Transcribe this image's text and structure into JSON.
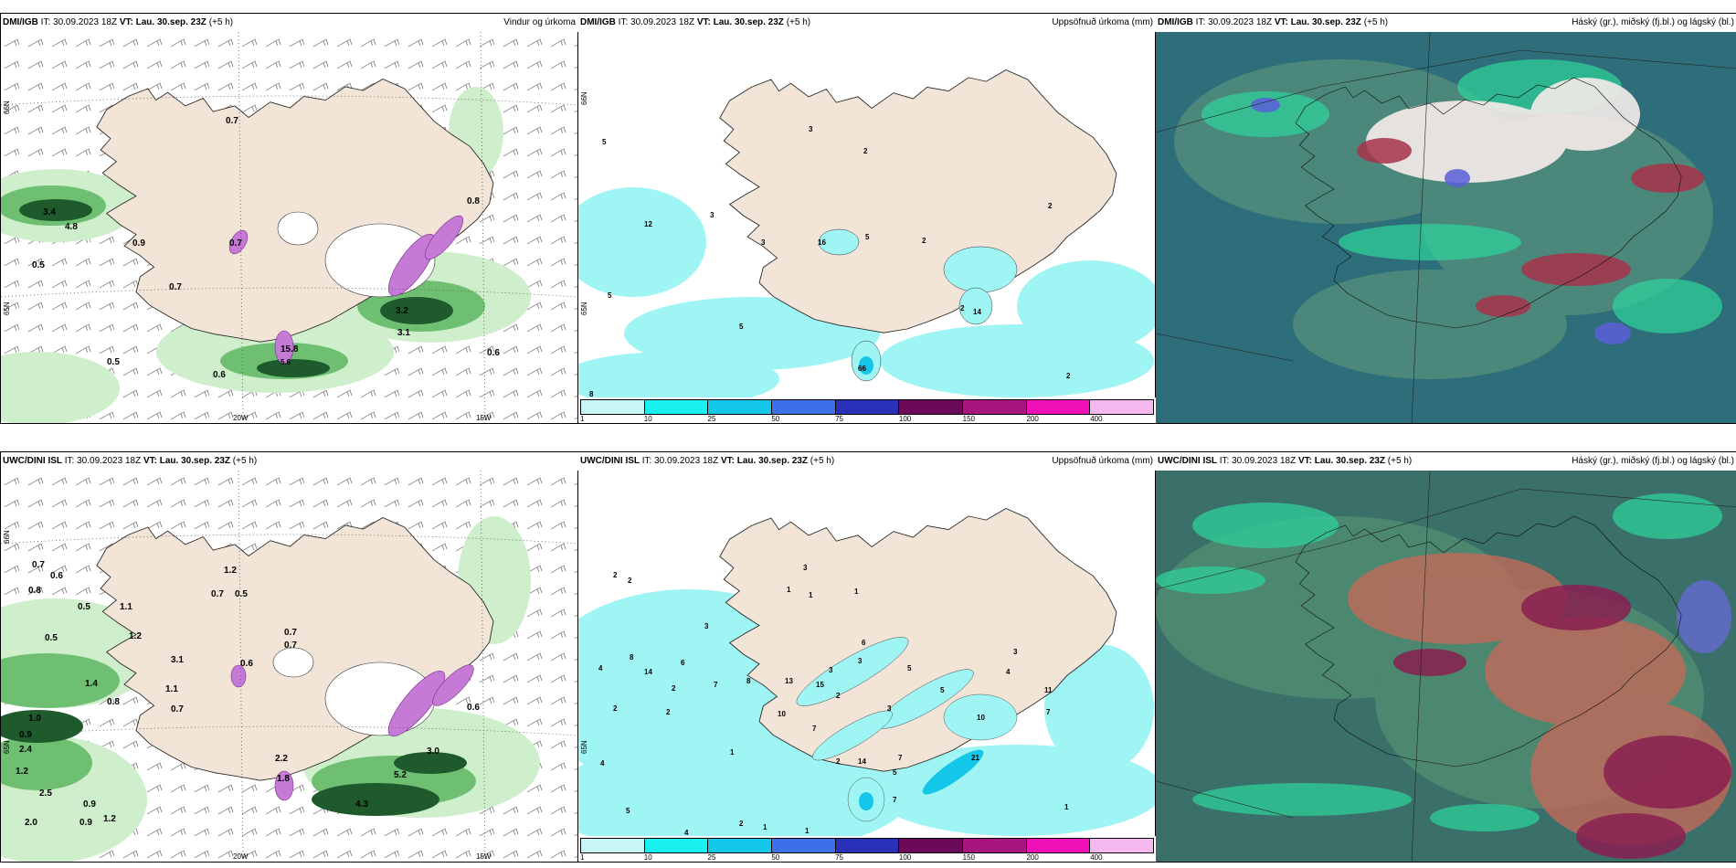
{
  "colors": {
    "land": "#f2e4d6",
    "sea": "#ffffff",
    "wind_light": "#cfeecb",
    "wind_mid": "#6fbf72",
    "wind_dark": "#1e5a2c",
    "precip_cyan": "#9ff4f4",
    "cloud_base": "#2e6e7a",
    "cloud_green": "#2fcf9a",
    "cloud_red": "#a8324a",
    "cloud_white": "#f6ecea"
  },
  "colorbar": {
    "ticks": [
      "1",
      "10",
      "25",
      "50",
      "75",
      "100",
      "150",
      "200",
      "400"
    ],
    "colors": [
      "#c9f7f7",
      "#19f0f0",
      "#14c6e8",
      "#3d6fe8",
      "#2a2fb8",
      "#6b0a56",
      "#a8157e",
      "#f010b8",
      "#f5b8ef"
    ]
  },
  "panels": [
    {
      "model": "DMI/IGB",
      "it": "IT: 30.09.2023 18Z",
      "vt_label": "VT:",
      "vt": "Lau. 30.sep. 23Z",
      "lead": "(+5 h)",
      "product": "Vindur og úrkoma",
      "axis": {
        "lat_top": "66N",
        "lat_mid": "65N",
        "lon_left": "20W",
        "lon_right": "15W"
      },
      "labels": [
        "0.7",
        "3.4",
        "4.8",
        "0.9",
        "0.5",
        "0.7",
        "0.7",
        "0.8",
        "3.2",
        "3.1",
        "0.6",
        "0.5",
        "0.6",
        "15.8",
        "5.6"
      ]
    },
    {
      "model": "DMI/IGB",
      "it": "IT: 30.09.2023 18Z",
      "vt_label": "VT:",
      "vt": "Lau. 30.sep. 23Z",
      "lead": "(+5 h)",
      "product": "Uppsöfnuð úrkoma (mm)",
      "axis": {
        "lat_top": "66N",
        "lat_mid": "65N"
      },
      "labels": [
        "5",
        "3",
        "2",
        "3",
        "3",
        "16",
        "5",
        "2",
        "2",
        "5",
        "5",
        "2",
        "8",
        "14",
        "66",
        "2",
        "12"
      ]
    },
    {
      "model": "DMI/IGB",
      "it": "IT: 30.09.2023 18Z",
      "vt_label": "VT:",
      "vt": "Lau. 30.sep. 23Z",
      "lead": "(+5 h)",
      "product": "Háský (gr.), miðský (fj.bl.) og lágský (bl.)"
    },
    {
      "model": "UWC/DINI ISL",
      "it": "IT: 30.09.2023 18Z",
      "vt_label": "VT:",
      "vt": "Lau. 30.sep. 23Z",
      "lead": "(+5 h)",
      "product": "",
      "axis": {
        "lat_top": "66N",
        "lat_mid": "65N",
        "lon_left": "20W",
        "lon_right": "15W"
      },
      "labels": [
        "0.7",
        "0.6",
        "0.8",
        "1.2",
        "0.5",
        "0.7",
        "0.5",
        "1.1",
        "0.5",
        "1.2",
        "0.6",
        "0.7",
        "0.7",
        "1.1",
        "0.8",
        "1.0",
        "0.9",
        "2.4",
        "1.2",
        "2.5",
        "0.9",
        "2.0",
        "0.9",
        "1.2",
        "0.7",
        "3.1",
        "4.3",
        "5.2",
        "3.0",
        "0.6",
        "1.4",
        "1.8",
        "2.2"
      ]
    },
    {
      "model": "UWC/DINI ISL",
      "it": "IT: 30.09.2023 18Z",
      "vt_label": "VT:",
      "vt": "Lau. 30.sep. 23Z",
      "lead": "(+5 h)",
      "product": "Uppsöfnuð úrkoma (mm)",
      "axis": {
        "lat_mid": "65N"
      },
      "labels": [
        "2",
        "2",
        "3",
        "1",
        "1",
        "1",
        "6",
        "3",
        "4",
        "8",
        "14",
        "6",
        "2",
        "2",
        "2",
        "7",
        "8",
        "15",
        "10",
        "2",
        "3",
        "3",
        "7",
        "5",
        "11",
        "7",
        "4",
        "3",
        "14",
        "21",
        "7",
        "2",
        "5",
        "4",
        "1",
        "4",
        "5",
        "2",
        "1",
        "1",
        "7",
        "5",
        "1",
        "10",
        "13",
        "3"
      ]
    },
    {
      "model": "UWC/DINI ISL",
      "it": "IT: 30.09.2023 18Z",
      "vt_label": "VT:",
      "vt": "Lau. 30.sep. 23Z",
      "lead": "(+5 h)",
      "product": "Háský (gr.), miðský (fj.bl.) og lágský (bl.)"
    }
  ]
}
